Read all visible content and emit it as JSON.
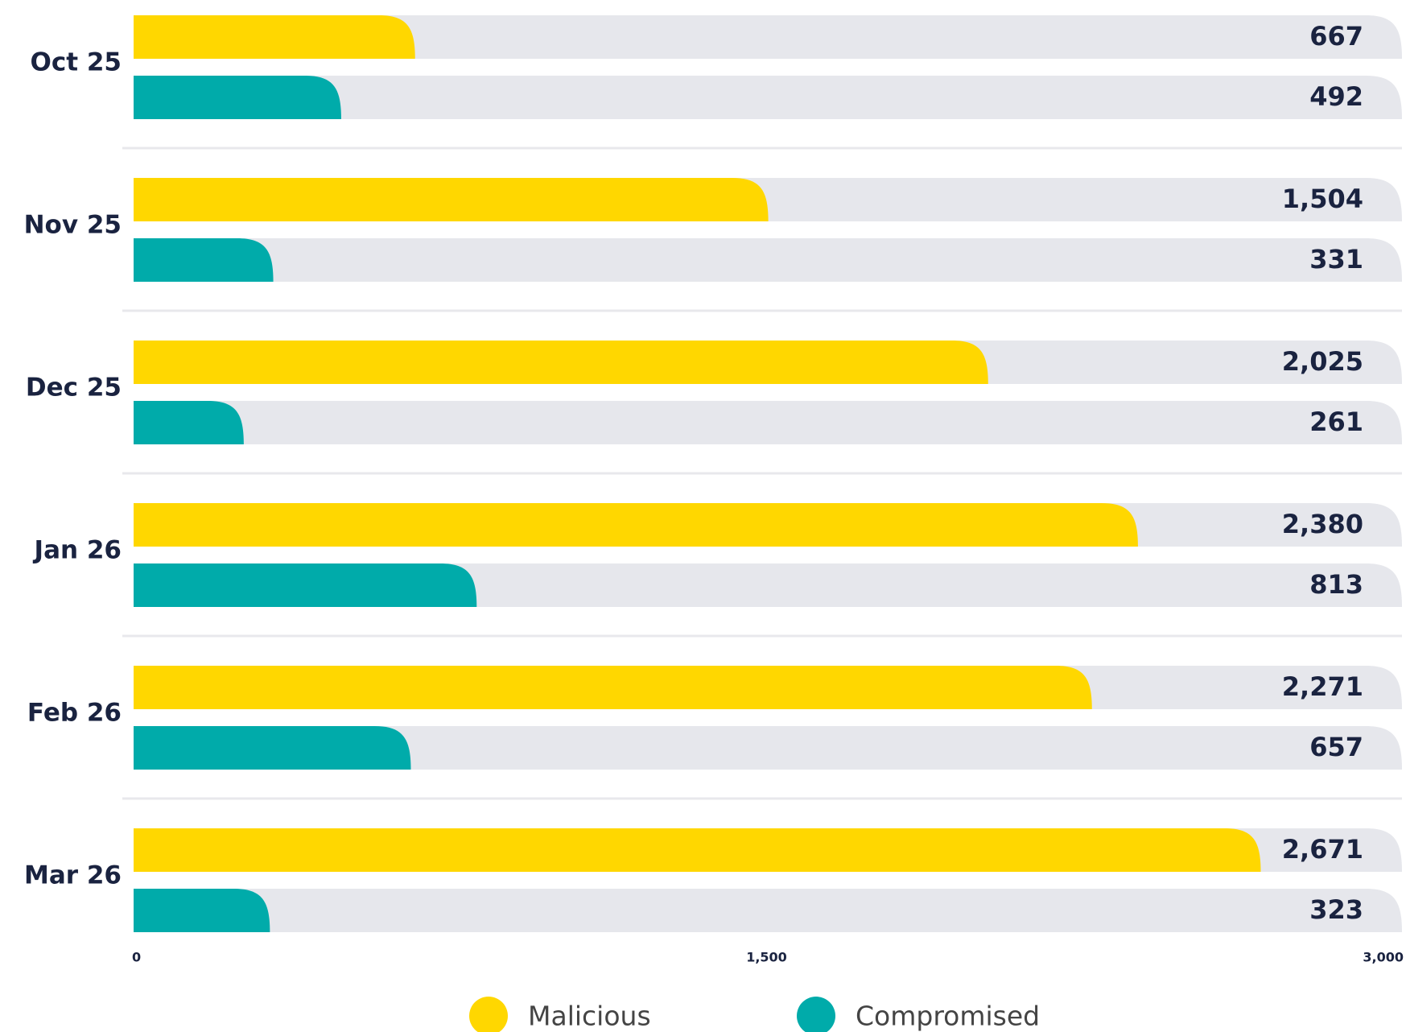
{
  "chart_data": {
    "type": "bar",
    "orientation": "horizontal",
    "categories": [
      "Oct 25",
      "Nov 25",
      "Dec 25",
      "Jan 26",
      "Feb 26",
      "Mar 26"
    ],
    "series": [
      {
        "name": "Malicious",
        "color": "#FFD700",
        "values": [
          667,
          1504,
          2025,
          2380,
          2271,
          2671
        ],
        "value_labels": [
          "667",
          "1,504",
          "2,025",
          "2,380",
          "2,271",
          "2,671"
        ]
      },
      {
        "name": "Compromised",
        "color": "#00ABAA",
        "values": [
          492,
          331,
          261,
          813,
          657,
          323
        ],
        "value_labels": [
          "492",
          "331",
          "261",
          "813",
          "657",
          "323"
        ]
      }
    ],
    "xlim": [
      0,
      3000
    ],
    "xticks": [
      0,
      {
        "value": 1500,
        "label": "1,500"
      },
      {
        "value": 3000,
        "label": "3,000"
      }
    ],
    "grid": false,
    "track_color": "#E6E7EC",
    "legend": "bottom"
  }
}
